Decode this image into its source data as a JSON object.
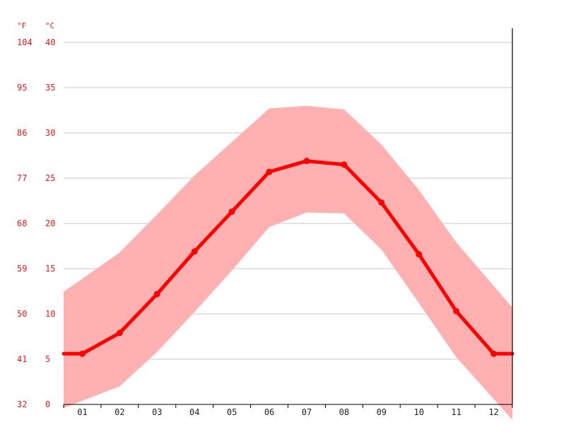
{
  "chart_data": {
    "type": "line",
    "x": [
      "01",
      "02",
      "03",
      "04",
      "05",
      "06",
      "07",
      "08",
      "09",
      "10",
      "11",
      "12"
    ],
    "series": [
      {
        "values": [
          5.6,
          7.9,
          12.2,
          16.9,
          21.3,
          25.7,
          26.9,
          26.5,
          22.3,
          16.6,
          10.3,
          5.6
        ]
      }
    ],
    "band": {
      "upper": [
        13.9,
        16.8,
        21.0,
        25.3,
        29.0,
        32.7,
        33.0,
        32.6,
        28.7,
        23.7,
        17.9,
        13.1
      ],
      "lower": [
        0.4,
        2.0,
        5.8,
        10.2,
        14.8,
        19.6,
        21.2,
        21.1,
        17.1,
        11.2,
        5.2,
        0.6
      ]
    },
    "ylim": [
      0,
      40
    ],
    "y_ticks_c": [
      "0",
      "5",
      "10",
      "15",
      "20",
      "25",
      "30",
      "35",
      "40"
    ],
    "y_ticks_f": [
      "32",
      "41",
      "50",
      "59",
      "68",
      "77",
      "86",
      "95",
      "104"
    ],
    "unit_left": "°F",
    "unit_right": "°C",
    "grid": true,
    "colors": {
      "line": "#ff0000",
      "band": "#ffb0b0",
      "tick_labels": "#e31a1c",
      "grid": "#c8c8c8"
    }
  }
}
